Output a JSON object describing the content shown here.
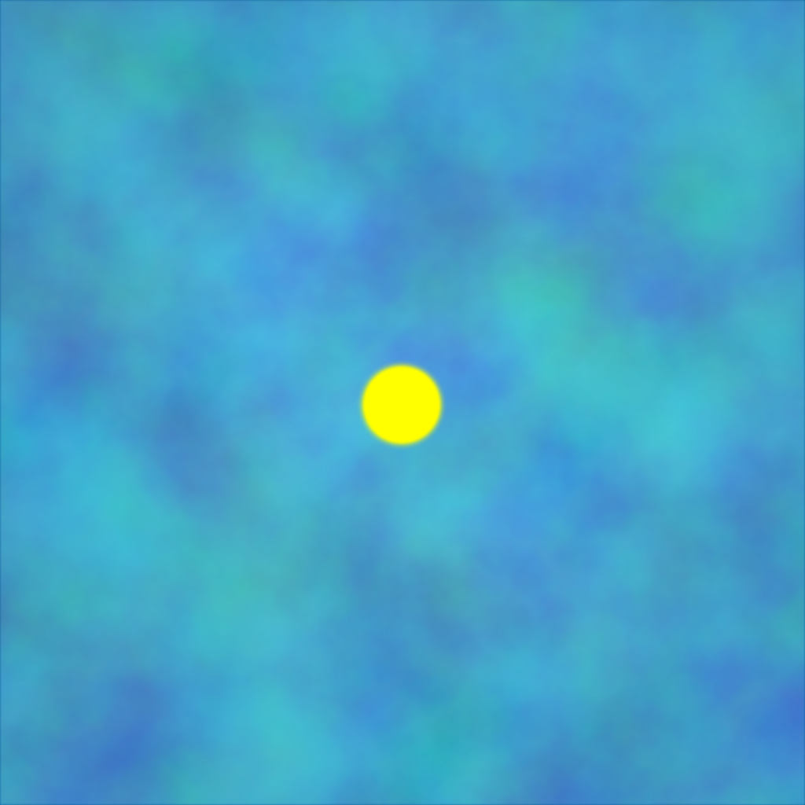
{
  "scene": {
    "background_type": "cloudy noise field",
    "colors": {
      "deep": "#123f8f",
      "mid": "#0b6bb0",
      "light": "#0aa2da",
      "target": "#ffff00"
    },
    "objects": [
      {
        "name": "target-dot",
        "shape": "circle",
        "color": "#ffff00"
      }
    ]
  }
}
